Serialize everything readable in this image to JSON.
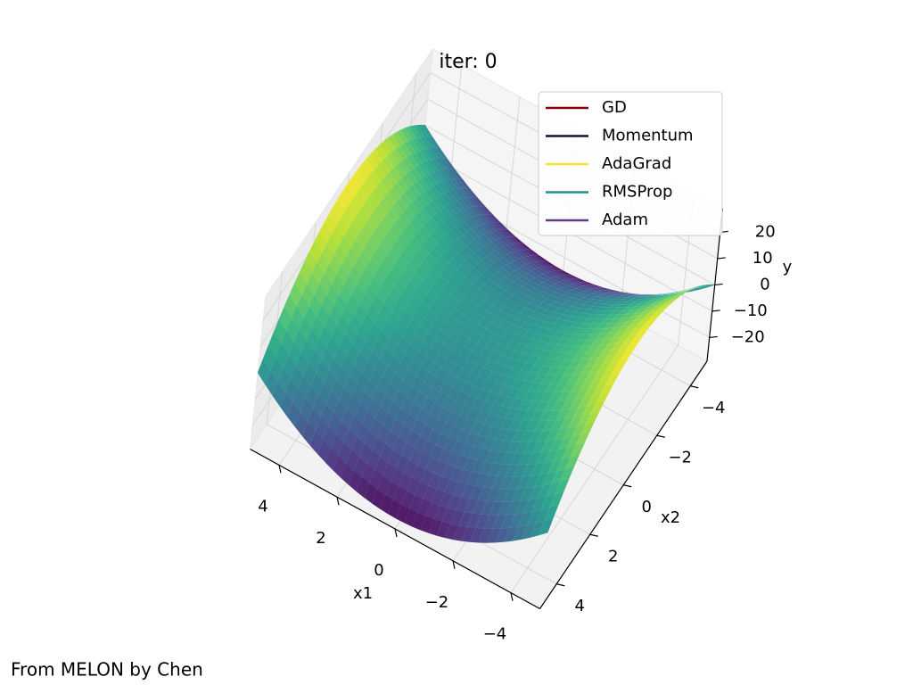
{
  "chart_data": {
    "type": "surface3d",
    "title": "iter: 0",
    "axes": {
      "x1": {
        "label": "x1",
        "lim": [
          -5,
          5
        ],
        "ticks": [
          {
            "value": -4,
            "label": "−4"
          },
          {
            "value": -2,
            "label": "−2"
          },
          0,
          2,
          4
        ]
      },
      "x2": {
        "label": "x2",
        "lim": [
          -5,
          5
        ],
        "ticks": [
          {
            "value": -4,
            "label": "−4"
          },
          {
            "value": -2,
            "label": "−2"
          },
          0,
          2,
          4
        ]
      },
      "y": {
        "label": "y",
        "lim": [
          -29,
          29
        ],
        "ticks": [
          {
            "value": -20,
            "label": "−20"
          },
          {
            "value": -10,
            "label": "−10"
          },
          0,
          10,
          20
        ]
      }
    },
    "series": [
      {
        "name": "GD",
        "color": "#8b0000"
      },
      {
        "name": "Momentum",
        "color": "#1b1035"
      },
      {
        "name": "AdaGrad",
        "color": "#f5e03a"
      },
      {
        "name": "RMSProp",
        "color": "#21918c"
      },
      {
        "name": "Adam",
        "color": "#5d3d82"
      }
    ],
    "legend": "upper right",
    "grid": true
  },
  "footer": "From MELON by Chen"
}
